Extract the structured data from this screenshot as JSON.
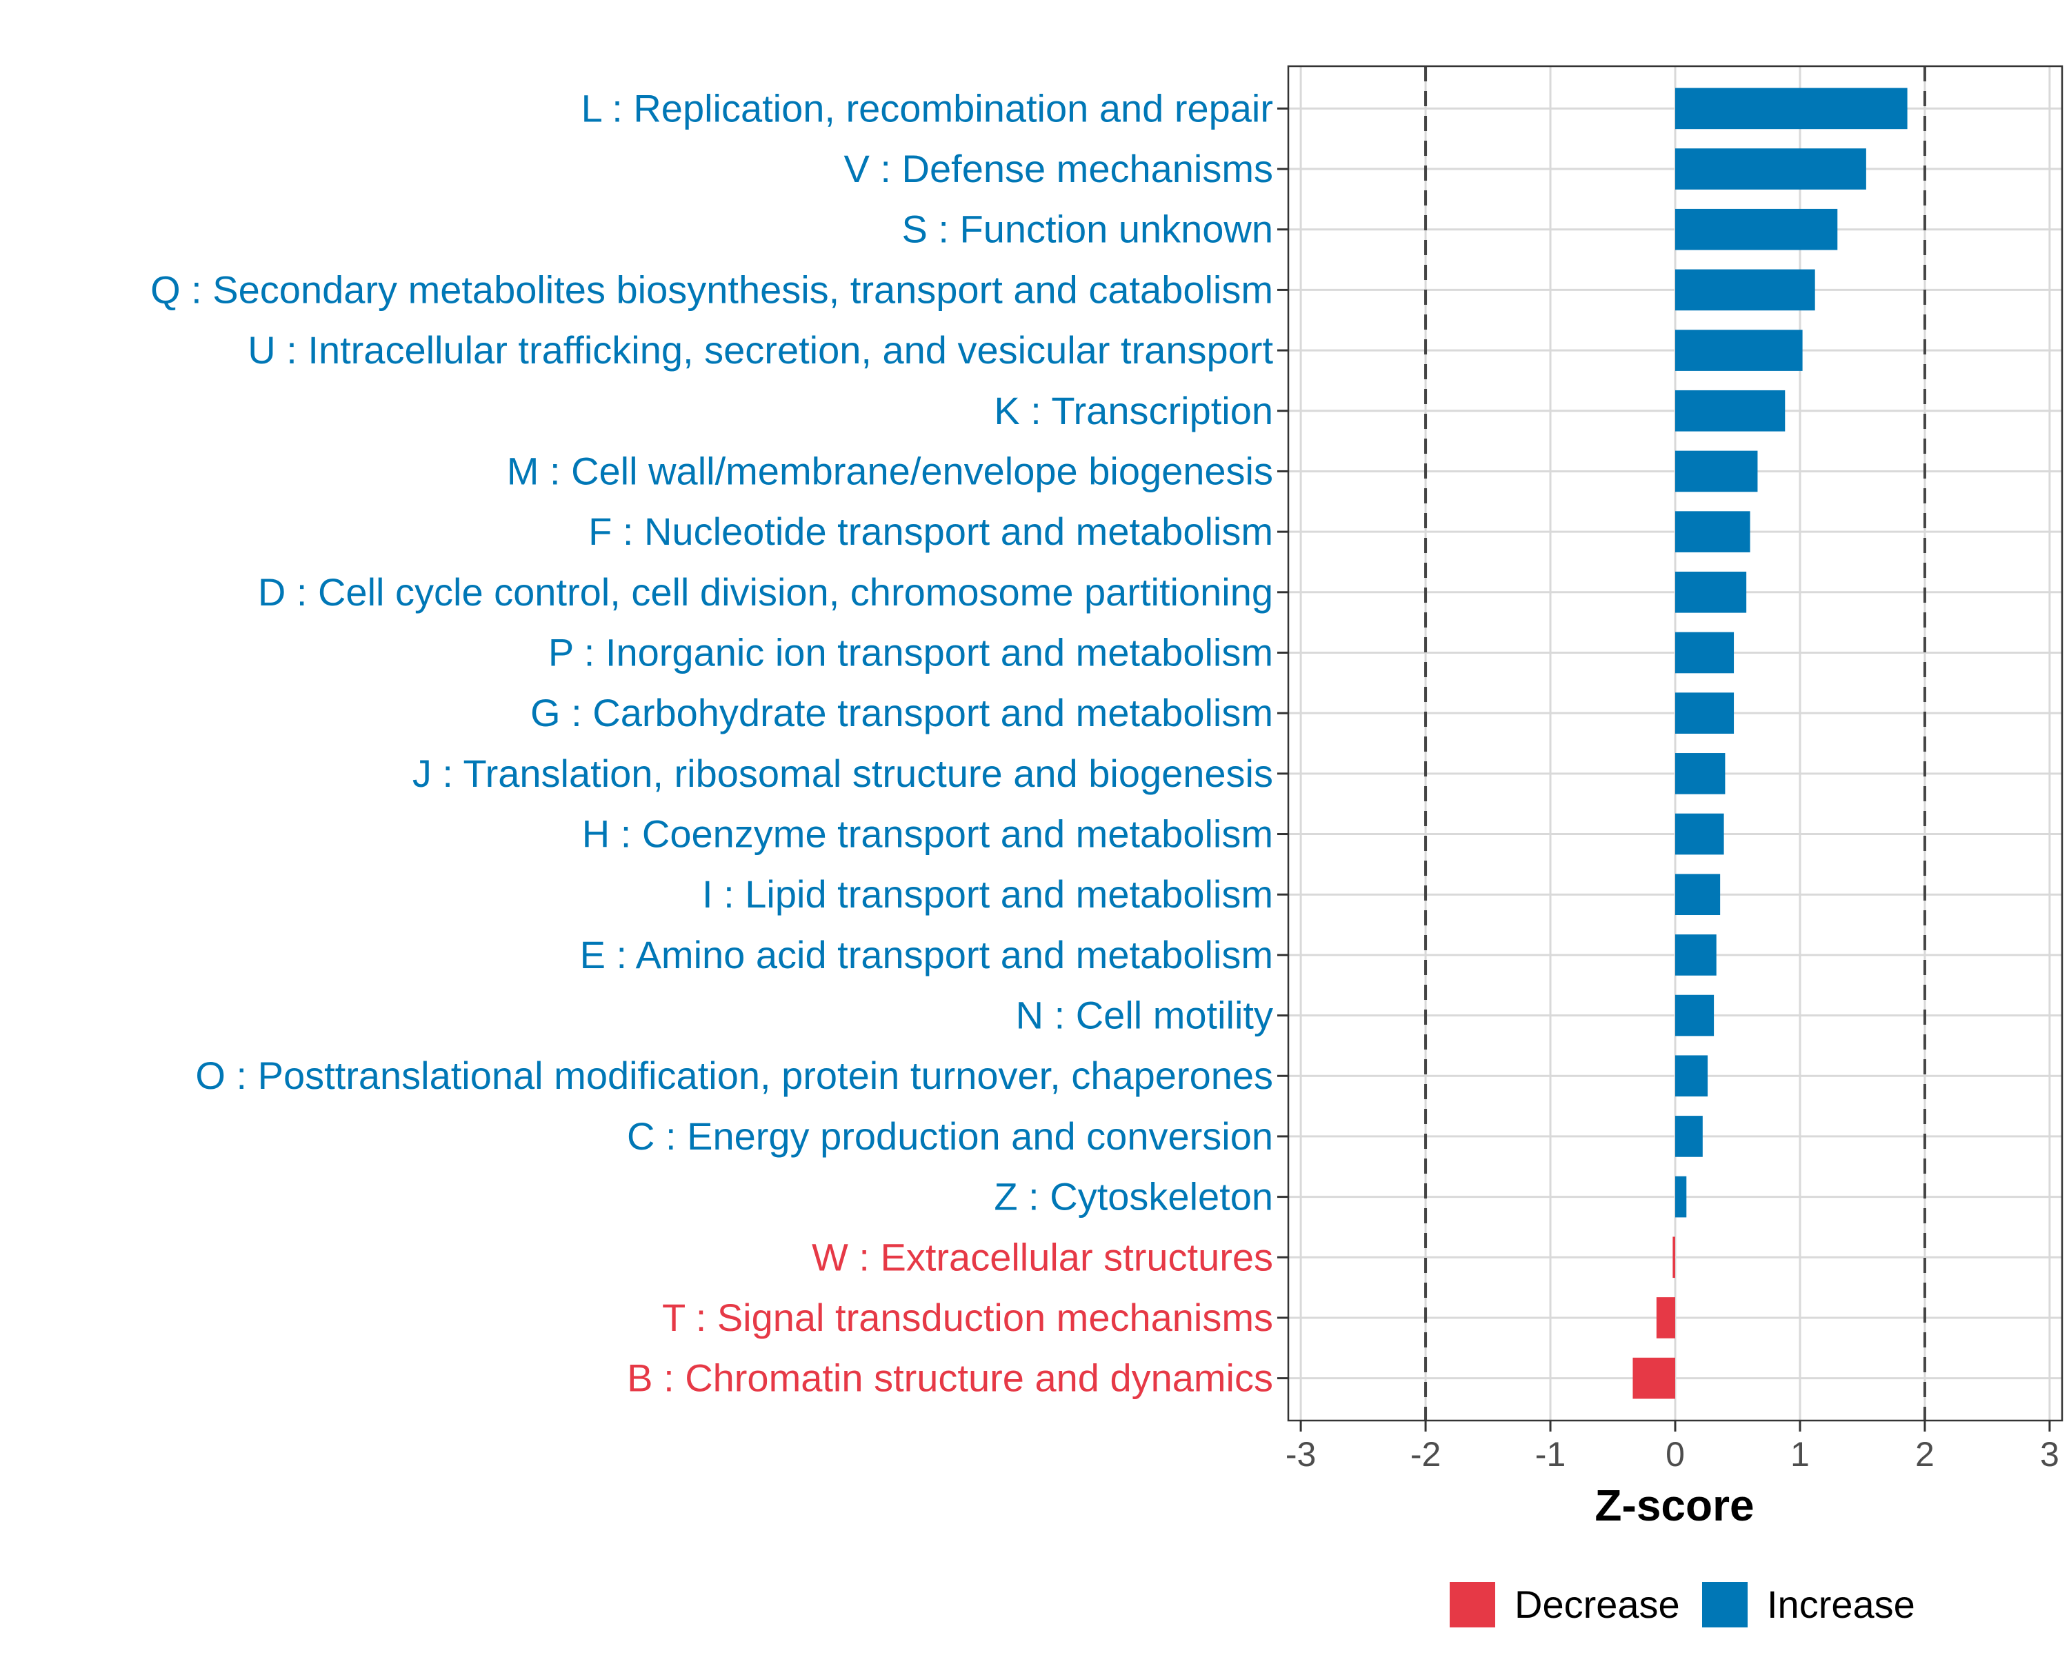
{
  "chart_data": {
    "type": "bar",
    "orientation": "horizontal",
    "xlabel": "Z-score",
    "xlim": [
      -3.1,
      3.1
    ],
    "xticks": [
      -3,
      -2,
      -1,
      0,
      1,
      2,
      3
    ],
    "xtick_labels": [
      "-3",
      "-2",
      "-1",
      "0",
      "1",
      "2",
      "3"
    ],
    "reference_lines": [
      -2,
      2
    ],
    "grid": true,
    "colors": {
      "Decrease": "#e63946",
      "Increase": "#0077b6"
    },
    "legend": {
      "position": "bottom",
      "items": [
        {
          "label": "Decrease",
          "color": "#e63946"
        },
        {
          "label": "Increase",
          "color": "#0077b6"
        }
      ]
    },
    "categories": [
      "L : Replication, recombination and repair",
      "V : Defense mechanisms",
      "S : Function unknown",
      "Q : Secondary metabolites biosynthesis, transport and catabolism",
      "U : Intracellular trafficking, secretion, and vesicular transport",
      "K : Transcription",
      "M : Cell wall/membrane/envelope biogenesis",
      "F : Nucleotide transport and metabolism",
      "D : Cell cycle control, cell division, chromosome partitioning",
      "P : Inorganic ion transport and metabolism",
      "G : Carbohydrate transport and metabolism",
      "J : Translation, ribosomal structure and biogenesis",
      "H : Coenzyme transport and metabolism",
      "I : Lipid transport and metabolism",
      "E : Amino acid transport and metabolism",
      "N : Cell motility",
      "O : Posttranslational modification, protein turnover, chaperones",
      "C : Energy production and conversion",
      "Z : Cytoskeleton",
      "W : Extracellular structures",
      "T : Signal transduction mechanisms",
      "B : Chromatin structure and dynamics"
    ],
    "values": [
      1.86,
      1.53,
      1.3,
      1.12,
      1.02,
      0.88,
      0.66,
      0.6,
      0.57,
      0.47,
      0.47,
      0.4,
      0.39,
      0.36,
      0.33,
      0.31,
      0.26,
      0.22,
      0.09,
      -0.02,
      -0.15,
      -0.34
    ],
    "groups": [
      "Increase",
      "Increase",
      "Increase",
      "Increase",
      "Increase",
      "Increase",
      "Increase",
      "Increase",
      "Increase",
      "Increase",
      "Increase",
      "Increase",
      "Increase",
      "Increase",
      "Increase",
      "Increase",
      "Increase",
      "Increase",
      "Increase",
      "Decrease",
      "Decrease",
      "Decrease"
    ]
  }
}
